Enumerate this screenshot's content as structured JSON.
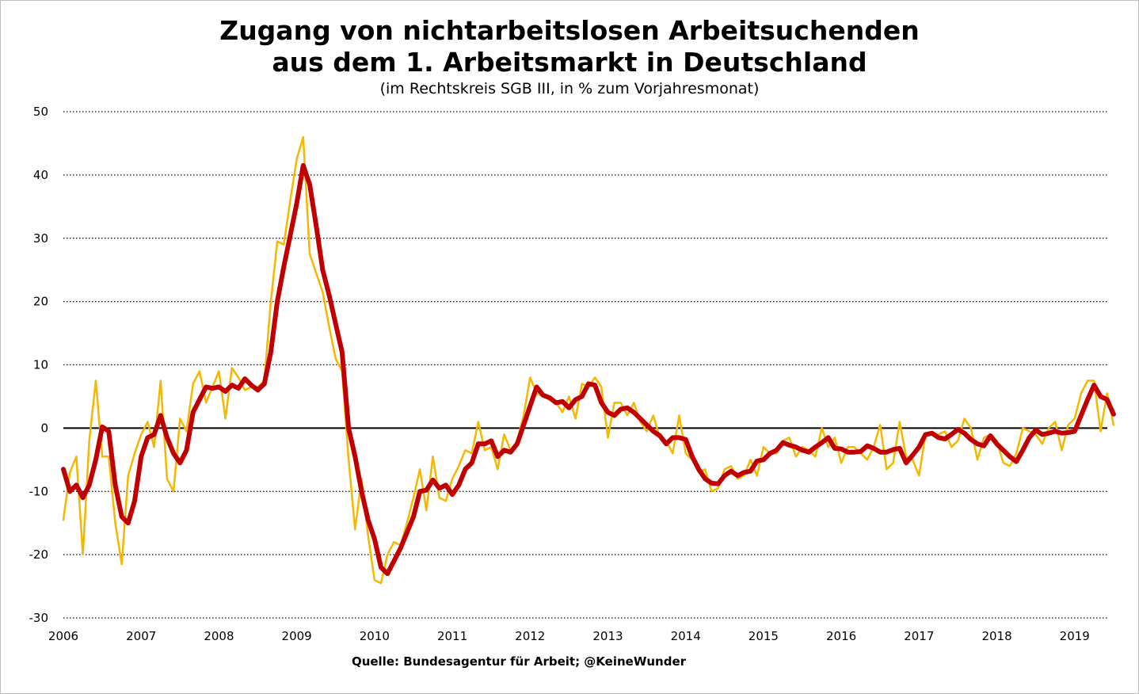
{
  "title_line1": "Zugang von nichtarbeitslosen Arbeitsuchenden",
  "title_line2": "aus dem 1. Arbeitsmarkt in Deutschland",
  "subtitle": "(im Rechtskreis SGB III, in % zum Vorjahresmonat)",
  "source": "Quelle:  Bundesagentur  für  Arbeit;  @KeineWunder",
  "chart_data": {
    "type": "line",
    "title": "Zugang von nichtarbeitslosen Arbeitsuchenden aus dem 1. Arbeitsmarkt in Deutschland",
    "subtitle": "(im Rechtskreis SGB III, in % zum Vorjahresmonat)",
    "xlabel": "",
    "ylabel": "",
    "ylim": [
      -30,
      50
    ],
    "yticks": [
      50,
      40,
      30,
      20,
      10,
      0,
      -10,
      -20,
      -30
    ],
    "xlim": [
      2006,
      2019.42
    ],
    "xticks": [
      "2006",
      "2007",
      "2008",
      "2009",
      "2010",
      "2011",
      "2012",
      "2013",
      "2014",
      "2015",
      "2016",
      "2017",
      "2018",
      "2019"
    ],
    "grid": "horizontal dotted",
    "legend": "none",
    "x_start": 2006.0,
    "x_step_months": 1,
    "colors": {
      "monthly": "#f5b800",
      "smoothed": "#c00000",
      "zero_line": "#000000"
    },
    "series": [
      {
        "values": [
          -14.5,
          -7,
          -4.5,
          -20,
          -2,
          7.5,
          -4.5,
          -4.5,
          -15,
          -21.5,
          -7.5,
          -4,
          -1,
          1,
          -3,
          7.5,
          -8,
          -10,
          1.5,
          -0.5,
          7,
          9,
          4,
          6.5,
          9,
          1.5,
          9.5,
          8,
          6,
          6.5,
          6.5,
          7.5,
          20,
          29.5,
          29,
          36,
          42.5,
          46,
          27.5,
          24.5,
          21.5,
          16,
          11,
          9,
          -5,
          -16,
          -8,
          -17,
          -24,
          -24.5,
          -20,
          -18,
          -18.5,
          -15,
          -11,
          -6.5,
          -13,
          -4.5,
          -11,
          -11.5,
          -8,
          -6,
          -3.5,
          -4,
          1,
          -3.5,
          -3,
          -6.5,
          -1,
          -3.5,
          -2,
          2,
          8,
          5.5,
          5,
          4.5,
          4,
          2.5,
          5,
          1.5,
          7,
          6.5,
          8,
          6.5,
          -1.5,
          4,
          4,
          2,
          4,
          1,
          -0.5,
          2,
          -1.5,
          -2,
          -4,
          2,
          -4,
          -5,
          -7,
          -6.5,
          -10,
          -9.5,
          -6.5,
          -6,
          -8,
          -7.5,
          -5,
          -7.5,
          -3,
          -4,
          -4,
          -2,
          -1.5,
          -4.5,
          -3,
          -3.5,
          -4.5,
          0,
          -3,
          -1.5,
          -5.5,
          -3,
          -3,
          -4,
          -5,
          -3,
          0.5,
          -6.5,
          -5.5,
          1,
          -4.5,
          -5,
          -7.5,
          -1,
          -1,
          -1,
          -0.5,
          -3,
          -2,
          1.5,
          0,
          -5,
          -1.5,
          -1,
          -2,
          -5.5,
          -6,
          -4,
          0,
          -0.5,
          -1,
          -2.5,
          0,
          1,
          -3.5,
          0.5,
          1.5,
          5.5,
          7.5,
          7.5,
          -0.5,
          5.5,
          0.5
        ],
        "color": "#f5b800"
      },
      {
        "values": [
          -6.5,
          -10,
          -9,
          -11,
          -9,
          -5,
          0.2,
          -0.5,
          -9,
          -14,
          -15,
          -11.5,
          -4.5,
          -1.5,
          -1,
          2,
          -1.5,
          -4,
          -5.5,
          -3.5,
          2.5,
          4.5,
          6.5,
          6.3,
          6.5,
          5.8,
          6.8,
          6.3,
          7.8,
          6.8,
          6,
          7,
          12,
          20,
          25.5,
          30.5,
          35.5,
          41.5,
          38.5,
          32,
          25,
          21,
          16.5,
          12,
          0,
          -4.5,
          -10,
          -14.5,
          -17.5,
          -22,
          -23,
          -21,
          -19,
          -16.5,
          -14,
          -10,
          -9.8,
          -8.2,
          -9.5,
          -9,
          -10.5,
          -9,
          -6.5,
          -5.5,
          -2.5,
          -2.5,
          -2,
          -4.5,
          -3.5,
          -3.8,
          -2.5,
          0.5,
          3.5,
          6.5,
          5.2,
          4.8,
          4,
          4.2,
          3.2,
          4.5,
          5,
          7,
          6.8,
          4,
          2.5,
          2,
          3,
          3.2,
          2.5,
          1.5,
          0.5,
          -0.5,
          -1.2,
          -2.5,
          -1.5,
          -1.5,
          -1.8,
          -4.5,
          -6.5,
          -8,
          -8.7,
          -8.8,
          -7.5,
          -6.8,
          -7.5,
          -7,
          -6.8,
          -5.2,
          -5,
          -4,
          -3.5,
          -2.3,
          -2.7,
          -3,
          -3.5,
          -3.8,
          -3,
          -2.3,
          -1.5,
          -3.2,
          -3.3,
          -3.8,
          -3.8,
          -3.7,
          -2.8,
          -3.2,
          -3.8,
          -3.8,
          -3.4,
          -3.2,
          -5.5,
          -4.3,
          -3,
          -1,
          -0.8,
          -1.5,
          -1.7,
          -1,
          -0.2,
          -0.8,
          -1.8,
          -2.5,
          -2.8,
          -1.2,
          -2.5,
          -3.5,
          -4.5,
          -5.3,
          -3.5,
          -1.5,
          -0.3,
          -1,
          -0.8,
          -0.5,
          -0.8,
          -0.7,
          -0.5,
          2,
          4.5,
          6.8,
          5,
          4.5,
          2.2
        ],
        "color": "#c00000"
      }
    ]
  }
}
